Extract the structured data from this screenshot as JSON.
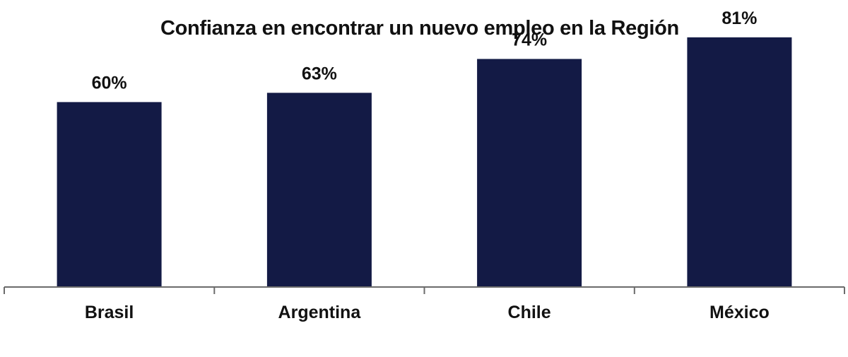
{
  "chart_data": {
    "type": "bar",
    "title": "Confianza en encontrar un nuevo empleo en la Región",
    "categories": [
      "Brasil",
      "Argentina",
      "Chile",
      "México"
    ],
    "values": [
      60,
      63,
      74,
      81
    ],
    "value_labels": [
      "60%",
      "63%",
      "74%",
      "81%"
    ],
    "xlabel": "",
    "ylabel": "",
    "ylim": [
      0,
      100
    ],
    "grid": false,
    "legend": "none",
    "bar_color": "#131a45",
    "axis_color": "#6b6b6b"
  }
}
